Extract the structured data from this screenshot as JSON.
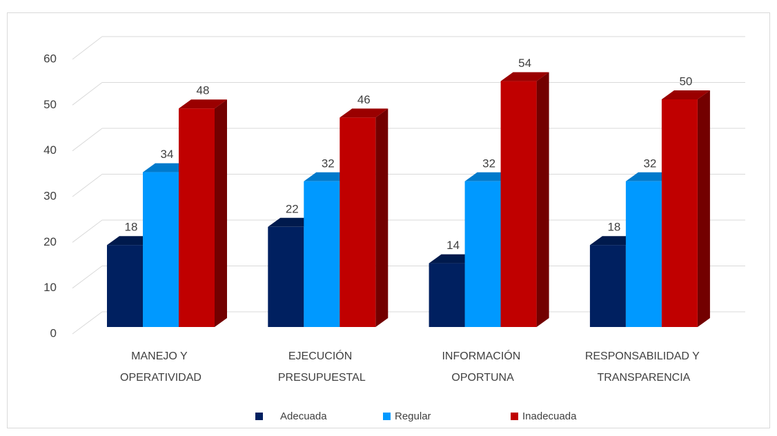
{
  "chart_data": {
    "type": "bar3d",
    "categories": [
      "MANEJO Y OPERATIVIDAD",
      "EJECUCIÓN PRESUPUESTAL",
      "INFORMACIÓN OPORTUNA",
      "RESPONSABILIDAD Y TRANSPARENCIA"
    ],
    "series": [
      {
        "name": "Adecuada",
        "color": "#002060",
        "values": [
          18,
          22,
          14,
          18
        ]
      },
      {
        "name": "Regular",
        "color": "#0099ff",
        "values": [
          34,
          32,
          32,
          32
        ]
      },
      {
        "name": "Inadecuada",
        "color": "#c00000",
        "values": [
          48,
          46,
          54,
          50
        ]
      }
    ],
    "ylim": [
      0,
      60
    ],
    "yticks": [
      0,
      10,
      20,
      30,
      40,
      50,
      60
    ],
    "grid": true,
    "legend": "bottom"
  }
}
